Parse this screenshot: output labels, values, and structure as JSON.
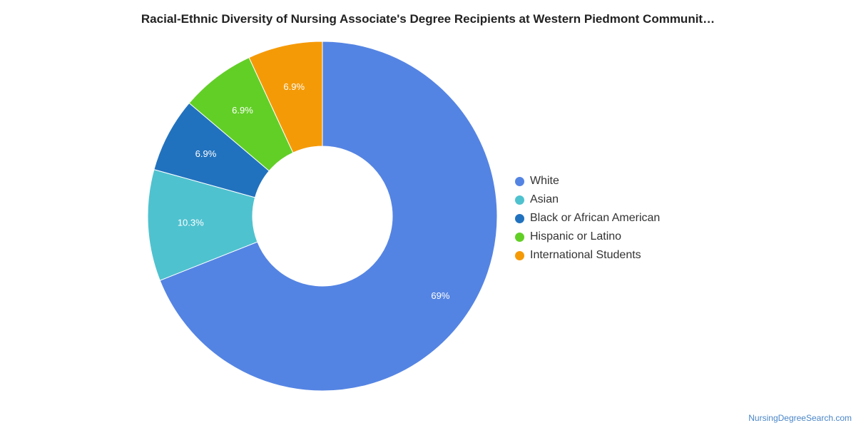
{
  "chart_data": {
    "type": "pie",
    "title": "Racial-Ethnic Diversity of Nursing Associate's Degree Recipients at Western Piedmont Communit…",
    "legend_position": "right",
    "slices": [
      {
        "name": "White",
        "value": 69.0,
        "label": "69%",
        "color": "#5484e3"
      },
      {
        "name": "Asian",
        "value": 10.3,
        "label": "10.3%",
        "color": "#4fc2cf"
      },
      {
        "name": "Black or African American",
        "value": 6.9,
        "label": "6.9%",
        "color": "#2172be"
      },
      {
        "name": "Hispanic or Latino",
        "value": 6.9,
        "label": "6.9%",
        "color": "#62cf27"
      },
      {
        "name": "International Students",
        "value": 6.9,
        "label": "6.9%",
        "color": "#f59a07"
      }
    ]
  },
  "credit": "NursingDegreeSearch.com"
}
